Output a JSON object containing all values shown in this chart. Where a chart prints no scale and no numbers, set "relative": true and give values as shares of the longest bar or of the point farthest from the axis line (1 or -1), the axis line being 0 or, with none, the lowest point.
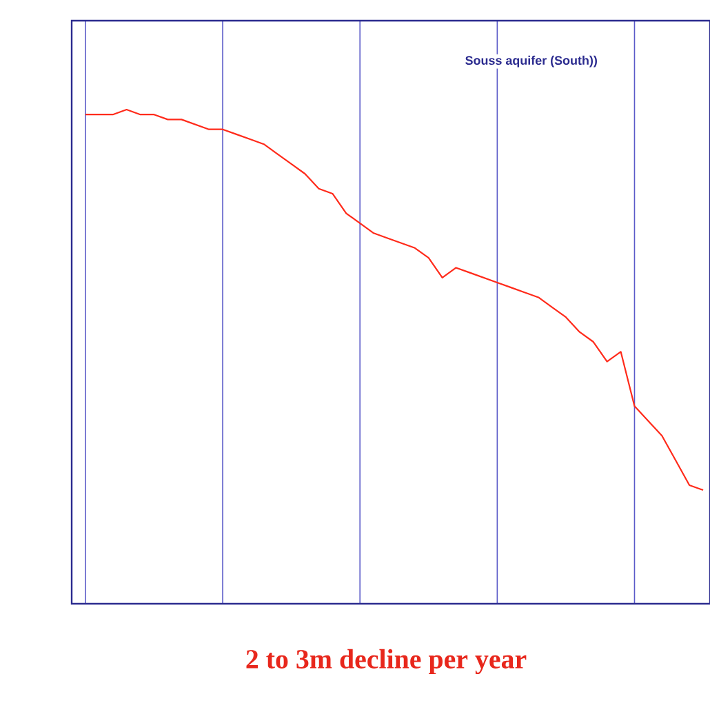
{
  "chart_data": {
    "type": "line",
    "relative": true,
    "grid": "x",
    "marker": "none",
    "line_style": "solid",
    "categories": [
      null,
      null,
      null,
      null,
      null,
      null,
      null,
      null,
      null,
      null,
      null,
      null,
      null,
      null,
      null,
      null,
      null,
      null,
      null,
      null,
      null,
      null,
      null,
      null,
      null,
      null,
      null,
      null,
      null,
      null,
      null,
      null,
      null,
      null,
      null,
      null,
      null,
      null,
      null,
      null,
      null,
      null,
      null,
      null,
      null,
      null
    ],
    "series": [
      {
        "color": "#ff2a1a",
        "values": [
          0.99,
          0.99,
          0.99,
          1.0,
          0.99,
          0.99,
          0.98,
          0.98,
          0.97,
          0.96,
          0.96,
          0.95,
          0.94,
          0.93,
          0.91,
          0.89,
          0.87,
          0.84,
          0.83,
          0.79,
          0.77,
          0.75,
          0.74,
          0.73,
          0.72,
          0.7,
          0.66,
          0.68,
          0.67,
          0.66,
          0.65,
          0.64,
          0.63,
          0.62,
          0.6,
          0.58,
          0.55,
          0.53,
          0.49,
          0.51,
          0.4,
          0.37,
          0.34,
          0.29,
          0.24,
          0.23
        ]
      }
    ],
    "annotations": [
      "Souss aquifer (South))",
      "2 to 3m decline per year"
    ]
  }
}
